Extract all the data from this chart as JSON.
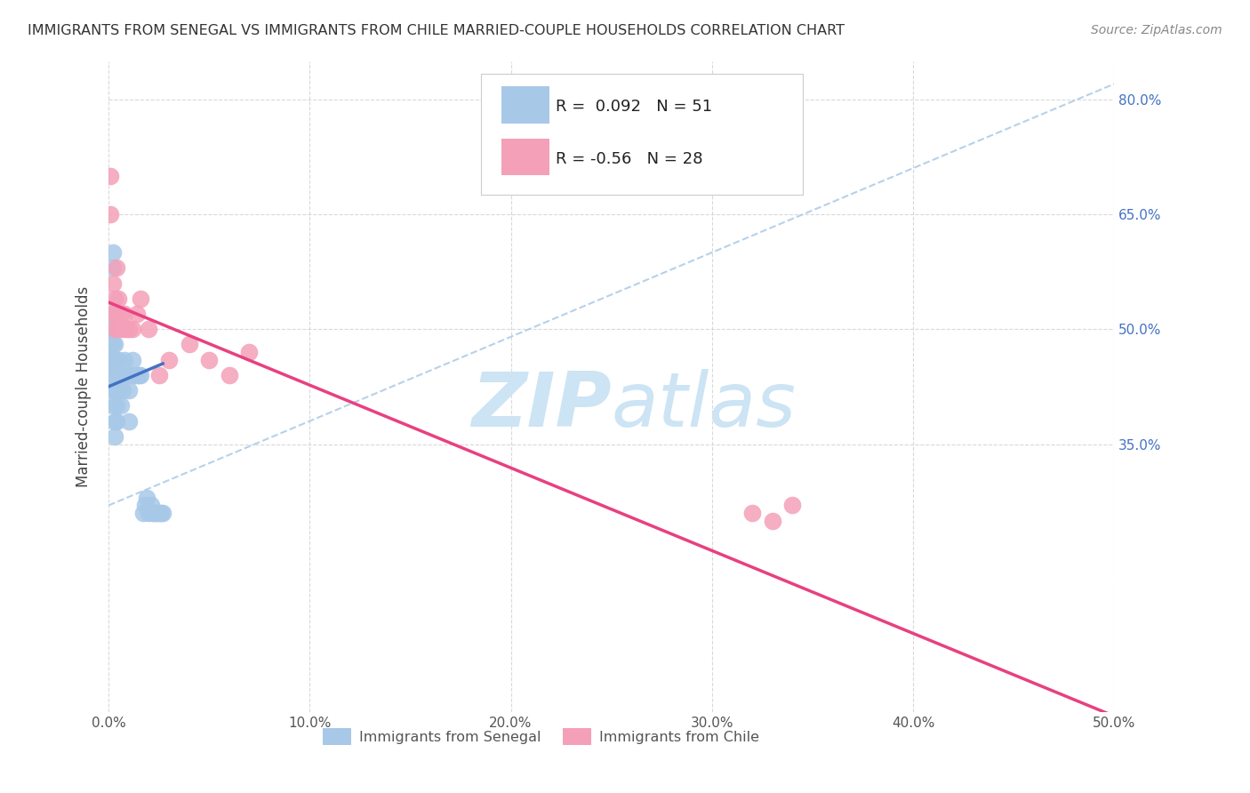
{
  "title": "IMMIGRANTS FROM SENEGAL VS IMMIGRANTS FROM CHILE MARRIED-COUPLE HOUSEHOLDS CORRELATION CHART",
  "source": "Source: ZipAtlas.com",
  "ylabel": "Married-couple Households",
  "xlim": [
    0,
    0.5
  ],
  "ylim": [
    0.0,
    0.85
  ],
  "xtick_vals": [
    0.0,
    0.1,
    0.2,
    0.3,
    0.4,
    0.5
  ],
  "ytick_vals_right": [
    0.8,
    0.65,
    0.5,
    0.35
  ],
  "ytick_labels_right": [
    "80.0%",
    "65.0%",
    "50.0%",
    "35.0%"
  ],
  "R_senegal": 0.092,
  "N_senegal": 51,
  "R_chile": -0.56,
  "N_chile": 28,
  "color_senegal": "#a8c8e8",
  "color_chile": "#f4a0b8",
  "line_color_senegal": "#4472c4",
  "line_color_chile": "#e84080",
  "dash_line_color": "#b0cce8",
  "watermark_color": "#cce4f4",
  "background_color": "#ffffff",
  "grid_color": "#d0d0d0",
  "senegal_x": [
    0.001,
    0.001,
    0.001,
    0.001,
    0.001,
    0.002,
    0.002,
    0.002,
    0.002,
    0.002,
    0.002,
    0.002,
    0.002,
    0.003,
    0.003,
    0.003,
    0.003,
    0.003,
    0.004,
    0.004,
    0.004,
    0.004,
    0.005,
    0.005,
    0.005,
    0.006,
    0.006,
    0.007,
    0.007,
    0.008,
    0.008,
    0.009,
    0.01,
    0.01,
    0.011,
    0.012,
    0.013,
    0.014,
    0.015,
    0.016,
    0.017,
    0.018,
    0.019,
    0.02,
    0.021,
    0.022,
    0.023,
    0.024,
    0.025,
    0.026,
    0.027
  ],
  "senegal_y": [
    0.44,
    0.46,
    0.48,
    0.5,
    0.52,
    0.4,
    0.42,
    0.44,
    0.46,
    0.48,
    0.5,
    0.58,
    0.6,
    0.36,
    0.38,
    0.42,
    0.44,
    0.48,
    0.38,
    0.4,
    0.44,
    0.46,
    0.42,
    0.44,
    0.46,
    0.4,
    0.44,
    0.42,
    0.44,
    0.44,
    0.46,
    0.44,
    0.38,
    0.42,
    0.44,
    0.46,
    0.44,
    0.44,
    0.44,
    0.44,
    0.26,
    0.27,
    0.28,
    0.26,
    0.27,
    0.26,
    0.26,
    0.26,
    0.26,
    0.26,
    0.26
  ],
  "chile_x": [
    0.001,
    0.001,
    0.002,
    0.002,
    0.003,
    0.003,
    0.004,
    0.004,
    0.005,
    0.005,
    0.006,
    0.007,
    0.008,
    0.009,
    0.01,
    0.012,
    0.014,
    0.016,
    0.02,
    0.025,
    0.03,
    0.04,
    0.05,
    0.06,
    0.07,
    0.32,
    0.33,
    0.34
  ],
  "chile_y": [
    0.65,
    0.7,
    0.52,
    0.56,
    0.5,
    0.54,
    0.52,
    0.58,
    0.5,
    0.54,
    0.52,
    0.5,
    0.52,
    0.5,
    0.5,
    0.5,
    0.52,
    0.54,
    0.5,
    0.44,
    0.46,
    0.48,
    0.46,
    0.44,
    0.47,
    0.26,
    0.25,
    0.27
  ],
  "senegal_line_x": [
    0.0,
    0.027
  ],
  "senegal_line_y": [
    0.425,
    0.455
  ],
  "chile_line_x": [
    0.0,
    0.5
  ],
  "chile_line_y": [
    0.535,
    -0.005
  ],
  "dash_line_x": [
    0.0,
    0.5
  ],
  "dash_line_y": [
    0.27,
    0.82
  ]
}
